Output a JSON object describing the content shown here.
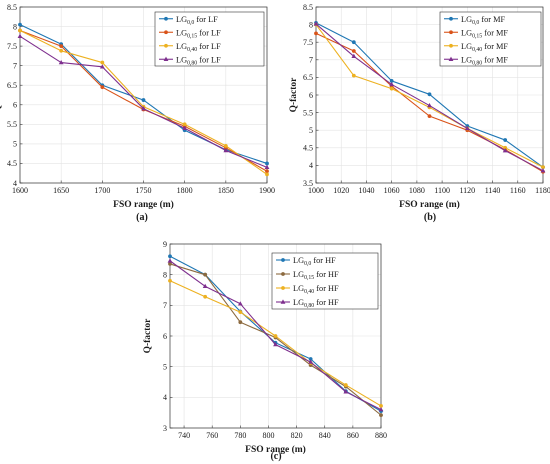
{
  "chart_data": [
    {
      "panel": "(a)",
      "type": "line",
      "xlabel": "FSO range (m)",
      "ylabel": "Q-factor",
      "x": [
        1600,
        1650,
        1700,
        1750,
        1800,
        1850,
        1900
      ],
      "xlim": [
        1600,
        1900
      ],
      "ylim": [
        4,
        8.5
      ],
      "xticks": [
        1600,
        1650,
        1700,
        1750,
        1800,
        1850,
        1900
      ],
      "yticks": [
        4,
        4.5,
        5,
        5.5,
        6,
        6.5,
        7,
        7.5,
        8,
        8.5
      ],
      "grid": true,
      "legend_position": "top-right",
      "series": [
        {
          "name_base": "LG",
          "name_sub": "0,0",
          "name_suffix": " for LF",
          "color": "#1f77b4",
          "marker": "circle",
          "values": [
            8.05,
            7.55,
            6.5,
            6.12,
            5.35,
            4.85,
            4.5
          ]
        },
        {
          "name_base": "LG",
          "name_sub": "0,15",
          "name_suffix": " for LF",
          "color": "#d95319",
          "marker": "circle",
          "values": [
            7.9,
            7.5,
            6.45,
            5.88,
            5.45,
            4.9,
            4.3
          ]
        },
        {
          "name_base": "LG",
          "name_sub": "0,40",
          "name_suffix": " for LF",
          "color": "#edb120",
          "marker": "circle",
          "values": [
            7.9,
            7.38,
            7.08,
            5.95,
            5.5,
            4.95,
            4.22
          ]
        },
        {
          "name_base": "LG",
          "name_sub": "0,80",
          "name_suffix": " for LF",
          "color": "#7e2f8e",
          "marker": "triangle",
          "values": [
            7.75,
            7.08,
            6.97,
            5.9,
            5.4,
            4.83,
            4.4
          ]
        }
      ]
    },
    {
      "panel": "(b)",
      "type": "line",
      "xlabel": "FSO range (m)",
      "ylabel": "Q-factor",
      "x": [
        1000,
        1030,
        1060,
        1090,
        1120,
        1150,
        1180
      ],
      "xlim": [
        1000,
        1180
      ],
      "ylim": [
        3.5,
        8.5
      ],
      "xticks": [
        1000,
        1020,
        1040,
        1060,
        1080,
        1100,
        1120,
        1140,
        1160,
        1180
      ],
      "yticks": [
        3.5,
        4,
        4.5,
        5,
        5.5,
        6,
        6.5,
        7,
        7.5,
        8,
        8.5
      ],
      "grid": true,
      "legend_position": "top-right",
      "series": [
        {
          "name_base": "LG",
          "name_sub": "0,0",
          "name_suffix": " for MF",
          "color": "#1f77b4",
          "marker": "circle",
          "values": [
            8.05,
            7.5,
            6.4,
            6.02,
            5.12,
            4.72,
            3.95
          ]
        },
        {
          "name_base": "LG",
          "name_sub": "0,15",
          "name_suffix": " for MF",
          "color": "#d95319",
          "marker": "circle",
          "values": [
            7.75,
            7.25,
            6.25,
            5.4,
            5.0,
            4.45,
            3.82
          ]
        },
        {
          "name_base": "LG",
          "name_sub": "0,40",
          "name_suffix": " for MF",
          "color": "#edb120",
          "marker": "circle",
          "values": [
            8.0,
            6.55,
            6.18,
            5.65,
            5.05,
            4.5,
            3.95
          ]
        },
        {
          "name_base": "LG",
          "name_sub": "0,80",
          "name_suffix": " for MF",
          "color": "#7e2f8e",
          "marker": "triangle",
          "values": [
            8.02,
            7.1,
            6.3,
            5.7,
            5.05,
            4.42,
            3.85
          ]
        }
      ]
    },
    {
      "panel": "(c)",
      "type": "line",
      "xlabel": "FSO range (m)",
      "ylabel": "Q-factor",
      "x": [
        730,
        755,
        780,
        805,
        830,
        855,
        880
      ],
      "xlim": [
        730,
        880
      ],
      "ylim": [
        3,
        9
      ],
      "xticks": [
        740,
        760,
        780,
        800,
        820,
        840,
        860,
        880
      ],
      "yticks": [
        3,
        4,
        5,
        6,
        7,
        8,
        9
      ],
      "grid": true,
      "legend_position": "top-right",
      "series": [
        {
          "name_base": "LG",
          "name_sub": "0,0",
          "name_suffix": " for HF",
          "color": "#1f77b4",
          "marker": "circle",
          "values": [
            8.6,
            8.0,
            6.8,
            5.78,
            5.25,
            4.2,
            3.55
          ]
        },
        {
          "name_base": "LG",
          "name_sub": "0,15",
          "name_suffix": " for HF",
          "color": "#8c6a3f",
          "marker": "circle",
          "values": [
            8.35,
            8.0,
            6.45,
            5.95,
            5.05,
            4.35,
            3.42
          ]
        },
        {
          "name_base": "LG",
          "name_sub": "0,40",
          "name_suffix": " for HF",
          "color": "#edb120",
          "marker": "circle",
          "values": [
            7.8,
            7.28,
            6.78,
            6.0,
            5.12,
            4.4,
            3.72
          ]
        },
        {
          "name_base": "LG",
          "name_sub": "0,80",
          "name_suffix": " for HF",
          "color": "#7e2f8e",
          "marker": "triangle",
          "values": [
            8.45,
            7.62,
            7.05,
            5.72,
            5.15,
            4.18,
            3.6
          ]
        }
      ]
    }
  ]
}
